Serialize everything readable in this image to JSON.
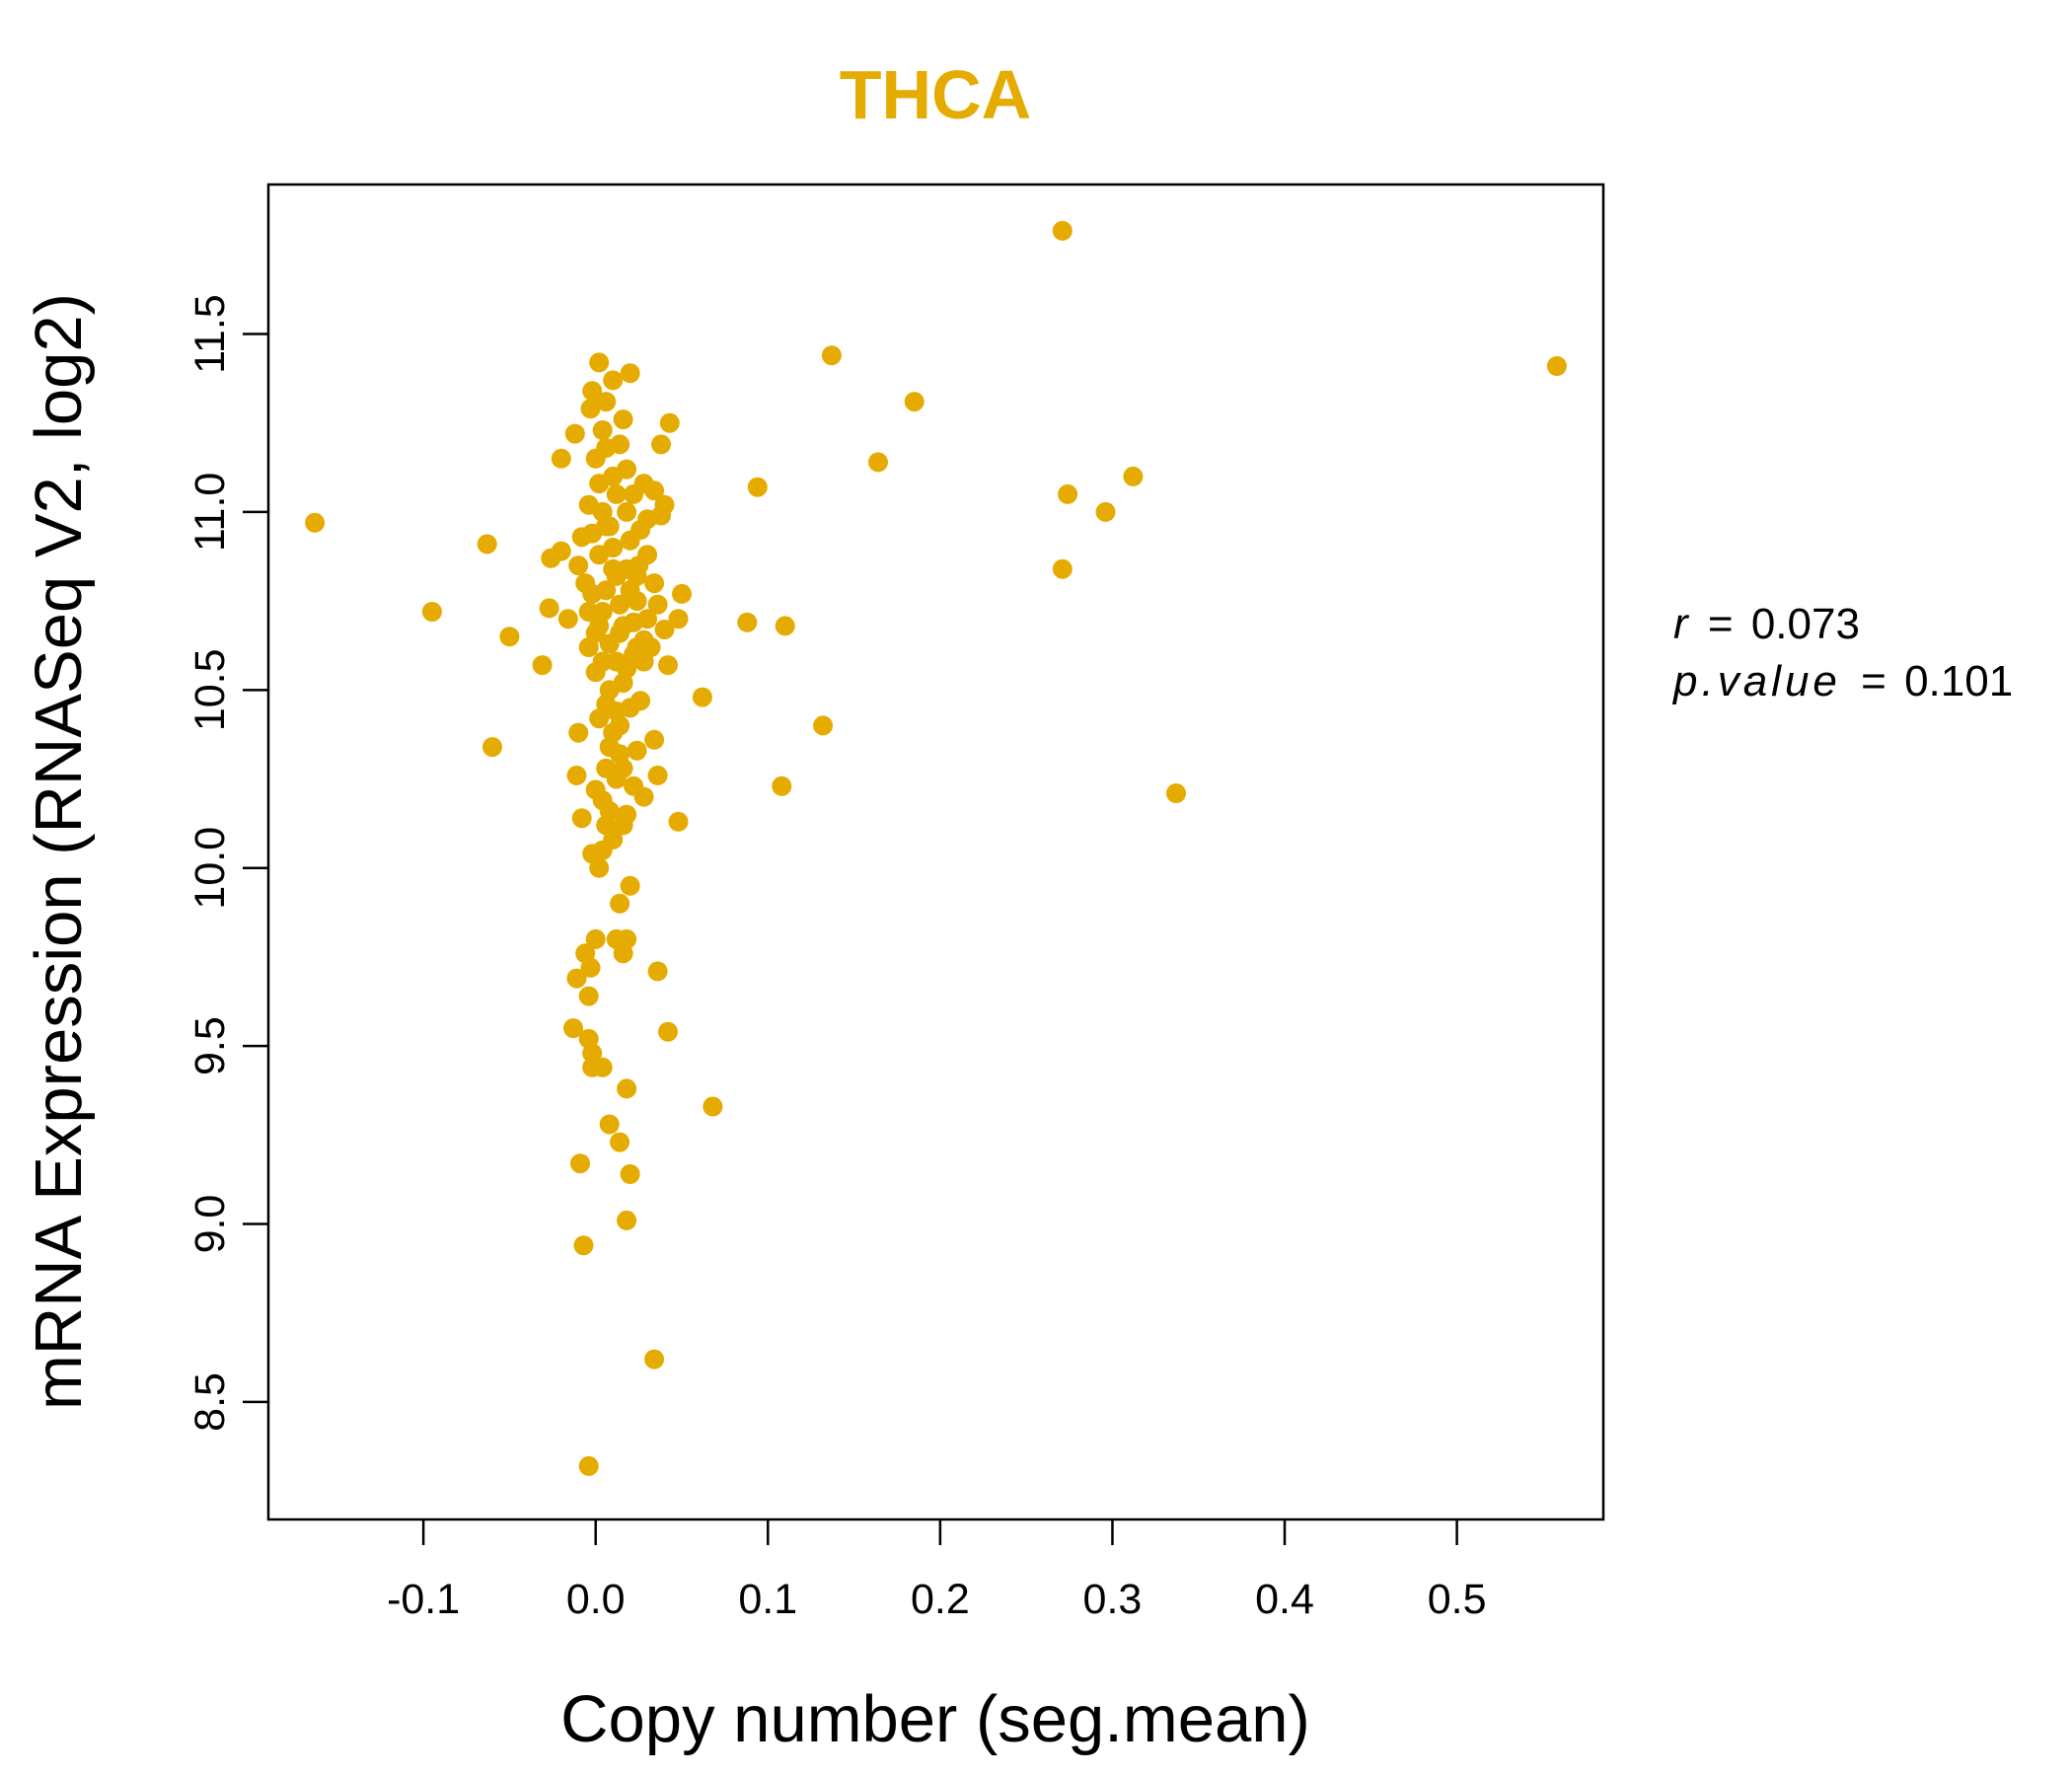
{
  "chart_data": {
    "type": "scatter",
    "title": "THCA",
    "xlabel": "Copy number (seg.mean)",
    "ylabel": "mRNA Expression (RNASeq V2, log2)",
    "xlim": [
      -0.19,
      0.585
    ],
    "ylim": [
      8.17,
      11.92
    ],
    "x_ticks": [
      -0.1,
      0.0,
      0.1,
      0.2,
      0.3,
      0.4,
      0.5
    ],
    "x_tick_labels": [
      "-0.1",
      "0.0",
      "0.1",
      "0.2",
      "0.3",
      "0.4",
      "0.5"
    ],
    "y_ticks": [
      8.5,
      9.0,
      9.5,
      10.0,
      10.5,
      11.0,
      11.5
    ],
    "y_tick_labels": [
      "8.5",
      "9.0",
      "9.5",
      "10.0",
      "10.5",
      "11.0",
      "11.5"
    ],
    "point_color": "#E5AB00",
    "title_color": "#E5AB00",
    "stats": {
      "r_label": "r",
      "r_value": "0.073",
      "p_label": "p.value",
      "p_value": "0.101",
      "separator": "="
    },
    "points": [
      [
        -0.163,
        10.97
      ],
      [
        -0.095,
        10.72
      ],
      [
        -0.063,
        10.91
      ],
      [
        -0.06,
        10.34
      ],
      [
        -0.05,
        10.65
      ],
      [
        -0.031,
        10.57
      ],
      [
        -0.027,
        10.73
      ],
      [
        -0.026,
        10.87
      ],
      [
        -0.02,
        10.89
      ],
      [
        -0.016,
        10.7
      ],
      [
        -0.02,
        11.15
      ],
      [
        -0.012,
        11.22
      ],
      [
        -0.01,
        10.38
      ],
      [
        -0.011,
        10.26
      ],
      [
        -0.013,
        9.55
      ],
      [
        -0.011,
        9.69
      ],
      [
        -0.009,
        9.17
      ],
      [
        -0.007,
        8.94
      ],
      [
        -0.004,
        8.32
      ],
      [
        -0.006,
        9.76
      ],
      [
        -0.004,
        9.64
      ],
      [
        -0.003,
        9.72
      ],
      [
        -0.004,
        9.52
      ],
      [
        -0.002,
        9.48
      ],
      [
        -0.002,
        9.44
      ],
      [
        0.0,
        9.8
      ],
      [
        0.004,
        9.44
      ],
      [
        0.002,
        10.0
      ],
      [
        -0.002,
        10.04
      ],
      [
        0.008,
        9.28
      ],
      [
        0.014,
        9.23
      ],
      [
        0.012,
        9.8
      ],
      [
        0.016,
        9.76
      ],
      [
        0.018,
        9.8
      ],
      [
        0.014,
        9.9
      ],
      [
        0.02,
        9.95
      ],
      [
        0.018,
        9.38
      ],
      [
        0.02,
        9.14
      ],
      [
        0.018,
        9.01
      ],
      [
        0.034,
        8.62
      ],
      [
        0.036,
        9.71
      ],
      [
        0.042,
        9.54
      ],
      [
        0.068,
        9.33
      ],
      [
        0.048,
        10.13
      ],
      [
        0.028,
        10.2
      ],
      [
        0.036,
        10.26
      ],
      [
        0.024,
        10.33
      ],
      [
        0.034,
        10.36
      ],
      [
        0.062,
        10.48
      ],
      [
        0.05,
        10.77
      ],
      [
        0.048,
        10.7
      ],
      [
        0.042,
        10.57
      ],
      [
        0.04,
        10.67
      ],
      [
        0.038,
        10.99
      ],
      [
        0.04,
        11.02
      ],
      [
        0.038,
        11.19
      ],
      [
        0.043,
        11.25
      ],
      [
        0.034,
        11.06
      ],
      [
        0.03,
        10.98
      ],
      [
        0.028,
        10.64
      ],
      [
        0.026,
        10.47
      ],
      [
        0.025,
        10.85
      ],
      [
        0.024,
        10.75
      ],
      [
        0.022,
        10.69
      ],
      [
        0.02,
        11.39
      ],
      [
        0.016,
        11.26
      ],
      [
        0.01,
        11.37
      ],
      [
        0.002,
        11.42
      ],
      [
        -0.002,
        11.34
      ],
      [
        -0.003,
        11.29
      ],
      [
        0.006,
        11.31
      ],
      [
        0.004,
        11.23
      ],
      [
        0.014,
        11.19
      ],
      [
        0.018,
        11.12
      ],
      [
        0.012,
        11.05
      ],
      [
        0.008,
        10.96
      ],
      [
        0.002,
        11.08
      ],
      [
        -0.004,
        11.02
      ],
      [
        -0.008,
        10.93
      ],
      [
        -0.01,
        10.85
      ],
      [
        -0.006,
        10.8
      ],
      [
        -0.002,
        10.77
      ],
      [
        0.004,
        10.72
      ],
      [
        0.008,
        10.63
      ],
      [
        0.012,
        10.58
      ],
      [
        0.016,
        10.52
      ],
      [
        0.006,
        10.46
      ],
      [
        0.002,
        10.42
      ],
      [
        0.01,
        10.38
      ],
      [
        0.014,
        10.32
      ],
      [
        0.006,
        10.28
      ],
      [
        0.012,
        10.25
      ],
      [
        0.004,
        10.19
      ],
      [
        0.008,
        10.16
      ],
      [
        0.016,
        10.12
      ],
      [
        0.01,
        10.08
      ],
      [
        0.004,
        10.05
      ],
      [
        0.018,
        10.15
      ],
      [
        0.022,
        10.23
      ],
      [
        0.016,
        10.28
      ],
      [
        -0.008,
        10.14
      ],
      [
        0.0,
        10.22
      ],
      [
        0.006,
        10.12
      ],
      [
        0.002,
        10.88
      ],
      [
        0.01,
        10.9
      ],
      [
        0.018,
        10.84
      ],
      [
        0.02,
        10.92
      ],
      [
        0.026,
        10.95
      ],
      [
        0.03,
        10.88
      ],
      [
        0.034,
        10.8
      ],
      [
        0.036,
        10.74
      ],
      [
        0.032,
        10.62
      ],
      [
        0.03,
        10.7
      ],
      [
        0.028,
        10.58
      ],
      [
        0.024,
        10.62
      ],
      [
        0.0,
        10.55
      ],
      [
        -0.004,
        10.62
      ],
      [
        0.002,
        10.68
      ],
      [
        0.006,
        10.78
      ],
      [
        0.012,
        10.82
      ],
      [
        -0.002,
        10.94
      ],
      [
        0.004,
        11.0
      ],
      [
        0.01,
        11.1
      ],
      [
        0.0,
        11.15
      ],
      [
        0.006,
        11.18
      ],
      [
        0.012,
        10.44
      ],
      [
        0.008,
        10.34
      ],
      [
        0.014,
        10.4
      ],
      [
        0.02,
        10.45
      ],
      [
        0.018,
        10.56
      ],
      [
        0.022,
        10.6
      ],
      [
        0.016,
        10.68
      ],
      [
        0.014,
        10.74
      ],
      [
        0.02,
        10.78
      ],
      [
        0.024,
        10.82
      ],
      [
        0.008,
        10.5
      ],
      [
        0.004,
        10.58
      ],
      [
        0.0,
        10.66
      ],
      [
        -0.004,
        10.72
      ],
      [
        0.014,
        10.66
      ],
      [
        0.028,
        11.08
      ],
      [
        0.018,
        11.0
      ],
      [
        0.022,
        11.05
      ],
      [
        0.01,
        10.84
      ],
      [
        0.006,
        10.96
      ],
      [
        0.088,
        10.69
      ],
      [
        0.094,
        11.07
      ],
      [
        0.11,
        10.68
      ],
      [
        0.108,
        10.23
      ],
      [
        0.132,
        10.4
      ],
      [
        0.137,
        11.44
      ],
      [
        0.164,
        11.14
      ],
      [
        0.185,
        11.31
      ],
      [
        0.271,
        11.79
      ],
      [
        0.274,
        11.05
      ],
      [
        0.271,
        10.84
      ],
      [
        0.296,
        11.0
      ],
      [
        0.312,
        11.1
      ],
      [
        0.337,
        10.21
      ],
      [
        0.558,
        11.41
      ]
    ]
  }
}
